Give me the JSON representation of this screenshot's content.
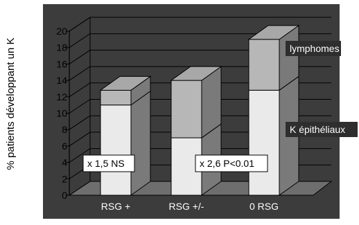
{
  "chart_data": {
    "type": "bar",
    "stacked": true,
    "three_d": true,
    "ylabel": "%  patients développant un K",
    "categories": [
      "RSG +",
      "RSG +/-",
      "0 RSG"
    ],
    "yticks": [
      "0",
      "2",
      "4",
      "6",
      "8",
      "10",
      "12",
      "14",
      "16",
      "18",
      "20"
    ],
    "ylim": [
      0,
      20
    ],
    "grid": true,
    "series": [
      {
        "name": "K épithéliaux",
        "values": [
          11,
          7,
          12.8
        ]
      },
      {
        "name": "lymphomes",
        "values": [
          1.8,
          7,
          6.2
        ]
      }
    ],
    "annotations": [
      "x 1,5 NS",
      "x 2,6  P<0.01"
    ],
    "colors": {
      "background": "#ffffff",
      "plot_area": "#3c3c3c",
      "floor": "#6e6e6e",
      "wall_line": "#000000",
      "grid": "#000000",
      "front_lower": "#eaeaea",
      "front_upper": "#b7b7b7",
      "top_face": "#a8a8a8",
      "side_face": "#7a7a7a",
      "tick_text": "#000000",
      "cat_text": "#ffffff",
      "legend_bg": "#2e2e2e",
      "legend_text": "#ffffff",
      "annotation_bg": "#ffffff"
    }
  }
}
